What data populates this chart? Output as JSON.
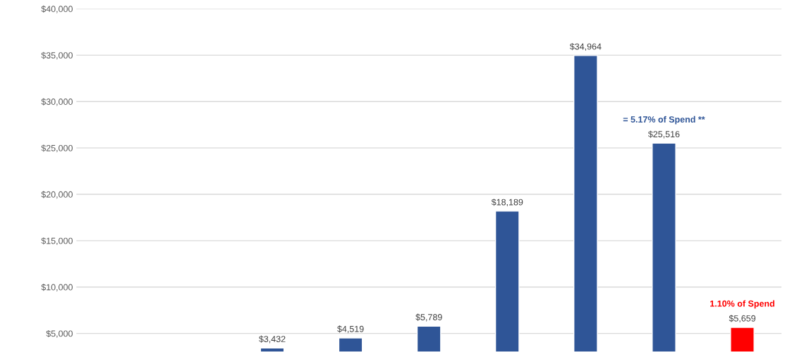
{
  "chart_data": {
    "type": "bar",
    "categories": [
      null,
      null,
      null,
      null,
      null,
      null,
      null,
      null,
      null
    ],
    "values": [
      null,
      null,
      3432,
      4519,
      5789,
      18189,
      34964,
      25516,
      5659
    ],
    "colors": [
      "#2f5597",
      "#2f5597",
      "#2f5597",
      "#2f5597",
      "#2f5597",
      "#2f5597",
      "#2f5597",
      "#2f5597",
      "#ff0000"
    ],
    "value_labels": [
      null,
      null,
      "$3,432",
      "$4,519",
      "$5,789",
      "$18,189",
      "$34,964",
      "$25,516",
      "$5,659"
    ],
    "annotations": [
      {
        "text": "= 5.17% of Spend **",
        "y": 25516
      },
      {
        "text": "1.10% of Spend",
        "y": 5659
      }
    ],
    "ylim": [
      3000,
      40000
    ],
    "yticks": [
      {
        "value": 5000,
        "label": "$5,000"
      },
      {
        "value": 10000,
        "label": "$10,000"
      },
      {
        "value": 15000,
        "label": "$15,000"
      },
      {
        "value": 20000,
        "label": "$20,000"
      },
      {
        "value": 25000,
        "label": "$25,000"
      },
      {
        "value": 30000,
        "label": "$30,000"
      },
      {
        "value": 35000,
        "label": "$35,000"
      },
      {
        "value": 40000,
        "label": "$40,000"
      }
    ],
    "grid": "y",
    "tick_labels": "y"
  }
}
